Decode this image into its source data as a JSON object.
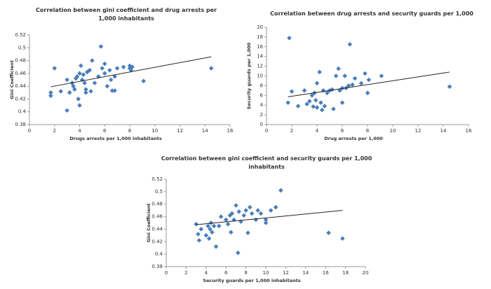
{
  "chart_data": [
    {
      "type": "scatter",
      "title": "Correlation between gini coefficient and drug arrests per 1,000 inhabitants",
      "x_label": "Drugs arrests per 1,000 inhabitants",
      "y_label": "Gini Coefficient",
      "color": "#4a7ebb",
      "x": [
        1.7,
        1.7,
        2,
        2.5,
        3,
        3,
        3.2,
        3.4,
        3.5,
        3.6,
        3.7,
        3.8,
        3.9,
        4,
        4,
        4.1,
        4.2,
        4.3,
        4.4,
        4.5,
        4.5,
        4.6,
        4.8,
        4.9,
        5,
        5.2,
        5.5,
        5.7,
        5.8,
        6,
        6,
        6.2,
        6.4,
        6.5,
        6.6,
        6.8,
        6.8,
        7,
        7.5,
        8,
        8,
        8.1,
        8.2,
        9.1,
        14.5
      ],
      "values": [
        0.43,
        0.425,
        0.468,
        0.432,
        0.45,
        0.402,
        0.43,
        0.445,
        0.44,
        0.435,
        0.452,
        0.455,
        0.42,
        0.46,
        0.41,
        0.472,
        0.45,
        0.458,
        0.445,
        0.435,
        0.43,
        0.462,
        0.465,
        0.432,
        0.48,
        0.445,
        0.455,
        0.502,
        0.468,
        0.475,
        0.46,
        0.44,
        0.465,
        0.45,
        0.433,
        0.433,
        0.455,
        0.468,
        0.47,
        0.472,
        0.468,
        0.465,
        0.47,
        0.448,
        0.468
      ],
      "trendline": {
        "x": [
          1.7,
          14.5
        ],
        "y": [
          0.439,
          0.486
        ]
      },
      "xlim": [
        0,
        16
      ],
      "xticks": [
        0,
        2,
        4,
        6,
        8,
        10,
        12,
        14,
        16
      ],
      "ylim": [
        0.38,
        0.52
      ],
      "yticks": [
        0.38,
        0.4,
        0.42,
        0.44,
        0.46,
        0.48,
        0.5,
        0.52
      ]
    },
    {
      "type": "scatter",
      "title": "Correlation between drug arrests and security guards per 1,000",
      "x_label": "Drug arrests per 1,000",
      "y_label": "Security guards per 1,000",
      "color": "#4a7ebb",
      "x": [
        1.7,
        1.8,
        2,
        2.5,
        3,
        3.2,
        3.4,
        3.6,
        3.7,
        3.8,
        3.9,
        4,
        4,
        4.2,
        4.3,
        4.4,
        4.5,
        4.6,
        4.8,
        5,
        5.2,
        5.3,
        5.5,
        5.7,
        5.8,
        6,
        6,
        6.2,
        6.3,
        6.5,
        6.6,
        6.8,
        7,
        7.5,
        7.8,
        8,
        8.1,
        9.1,
        14.5
      ],
      "values": [
        4.5,
        17.8,
        6.8,
        3.8,
        7,
        4.2,
        4.8,
        6,
        3.7,
        6.5,
        5,
        8.5,
        3.5,
        10.8,
        4.5,
        3,
        7,
        3.8,
        6.5,
        7,
        7.2,
        3.2,
        10,
        11.5,
        7,
        7.5,
        4.5,
        10,
        7.5,
        8,
        16.5,
        8.2,
        9.5,
        8.5,
        10.5,
        6.5,
        9.2,
        10,
        7.8
      ],
      "trendline": {
        "x": [
          1.7,
          14.5
        ],
        "y": [
          5.7,
          10.8
        ]
      },
      "xlim": [
        0,
        16
      ],
      "xticks": [
        0,
        2,
        4,
        6,
        8,
        10,
        12,
        14,
        16
      ],
      "ylim": [
        0,
        20
      ],
      "yticks": [
        0,
        2,
        4,
        6,
        8,
        10,
        12,
        14,
        16,
        18,
        20
      ]
    },
    {
      "type": "scatter",
      "title": "Correlation between gini coefficient and security guards per 1,000 inhabitants",
      "x_label": "Security guards per 1,000 inhabitants",
      "y_label": "Gini Coefficient",
      "color": "#4a7ebb",
      "x": [
        3,
        3.2,
        3.3,
        3.5,
        4,
        4.2,
        4.3,
        4.4,
        4.5,
        4.6,
        4.8,
        5,
        5.3,
        5.5,
        6,
        6.2,
        6.4,
        6.5,
        6.6,
        6.8,
        7,
        7.2,
        7.3,
        7.5,
        7.8,
        8,
        8.2,
        8.4,
        8.6,
        9,
        9.2,
        9.5,
        10,
        10,
        10.5,
        11,
        11.5,
        16.3,
        17.7
      ],
      "values": [
        0.448,
        0.432,
        0.422,
        0.44,
        0.43,
        0.445,
        0.425,
        0.44,
        0.45,
        0.435,
        0.445,
        0.412,
        0.445,
        0.46,
        0.455,
        0.448,
        0.462,
        0.435,
        0.465,
        0.455,
        0.478,
        0.402,
        0.468,
        0.452,
        0.462,
        0.47,
        0.434,
        0.475,
        0.465,
        0.455,
        0.47,
        0.465,
        0.45,
        0.455,
        0.47,
        0.475,
        0.502,
        0.434,
        0.425
      ],
      "trendline": {
        "x": [
          3,
          17.7
        ],
        "y": [
          0.447,
          0.47
        ]
      },
      "xlim": [
        0,
        20
      ],
      "xticks": [
        0,
        2,
        4,
        6,
        8,
        10,
        12,
        14,
        16,
        18,
        20
      ],
      "ylim": [
        0.38,
        0.52
      ],
      "yticks": [
        0.38,
        0.4,
        0.42,
        0.44,
        0.46,
        0.48,
        0.5,
        0.52
      ]
    }
  ]
}
